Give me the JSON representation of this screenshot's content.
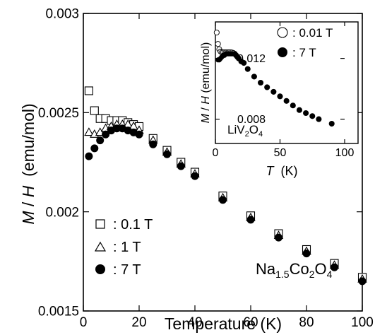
{
  "chart_data": [
    {
      "type": "scatter",
      "xlabel": "Temperature (K)",
      "ylabel_parts": [
        "M",
        " / ",
        "H",
        "  (emu/mol)"
      ],
      "xlim": [
        0,
        100
      ],
      "ylim": [
        0.0015,
        0.003
      ],
      "x_ticks": [
        0,
        20,
        40,
        60,
        80,
        100
      ],
      "x_tick_labels": [
        "0",
        "20",
        "40",
        "60",
        "80",
        "100"
      ],
      "y_ticks": [
        0.0015,
        0.002,
        0.0025,
        0.003
      ],
      "y_tick_labels": [
        "0.0015",
        "0.002",
        "0.0025",
        "0.003"
      ],
      "annotation": {
        "parts": [
          "Na",
          "1.5",
          "Co",
          "2",
          "O",
          "4"
        ]
      },
      "legend": {
        "position": "bottom-left",
        "entries": [
          {
            "marker": "open-square",
            "label": ": 0.1 T"
          },
          {
            "marker": "open-triangle",
            "label": ": 1 T"
          },
          {
            "marker": "filled-circle",
            "label": ": 7 T"
          }
        ]
      },
      "series": [
        {
          "name": "0.1 T",
          "marker": "open-square",
          "x": [
            2,
            4,
            6,
            8,
            10,
            12,
            14,
            16,
            18,
            20,
            25,
            30,
            35,
            40,
            50,
            60,
            70,
            80,
            90,
            100
          ],
          "y": [
            0.00261,
            0.00251,
            0.00247,
            0.00247,
            0.00246,
            0.00246,
            0.00246,
            0.00245,
            0.00244,
            0.00243,
            0.00237,
            0.00231,
            0.00225,
            0.0022,
            0.00208,
            0.00198,
            0.00189,
            0.00181,
            0.00174,
            0.00167
          ]
        },
        {
          "name": "1 T",
          "marker": "open-triangle",
          "x": [
            2,
            4,
            6,
            8,
            10,
            12,
            14,
            16,
            18,
            20,
            25,
            30,
            35,
            40,
            50,
            60,
            70,
            80,
            90,
            100
          ],
          "y": [
            0.0024,
            0.00239,
            0.0024,
            0.00242,
            0.00243,
            0.00244,
            0.00244,
            0.00244,
            0.00243,
            0.00241,
            0.00236,
            0.0023,
            0.00224,
            0.00219,
            0.00207,
            0.00197,
            0.00188,
            0.0018,
            0.00173,
            0.00166
          ]
        },
        {
          "name": "7 T",
          "marker": "filled-circle",
          "x": [
            2,
            4,
            6,
            8,
            10,
            12,
            14,
            16,
            18,
            20,
            25,
            30,
            35,
            40,
            50,
            60,
            70,
            80,
            90,
            100
          ],
          "y": [
            0.00228,
            0.00232,
            0.00236,
            0.00239,
            0.00241,
            0.00242,
            0.00242,
            0.00241,
            0.0024,
            0.00239,
            0.00234,
            0.00229,
            0.00223,
            0.00218,
            0.00206,
            0.00196,
            0.00187,
            0.00179,
            0.00172,
            0.00165
          ]
        }
      ]
    },
    {
      "type": "scatter",
      "xlabel_parts": [
        "T",
        "  (K)"
      ],
      "ylabel_parts": [
        "M",
        " / ",
        "H",
        " (emu/mol)"
      ],
      "xlim": [
        0,
        100
      ],
      "ylim": [
        0.0064,
        0.0144
      ],
      "x_ticks": [
        0,
        50,
        100
      ],
      "x_tick_labels": [
        "0",
        "50",
        "100"
      ],
      "y_ticks": [
        0.008,
        0.012
      ],
      "y_tick_labels": [
        "0.008",
        "0.012"
      ],
      "annotation": {
        "parts": [
          "LiV",
          "2",
          "O",
          "4"
        ]
      },
      "legend": {
        "position": "top-right",
        "entries": [
          {
            "marker": "open-circle",
            "label": ": 0.01 T"
          },
          {
            "marker": "filled-circle",
            "label": ": 7 T"
          }
        ]
      },
      "series": [
        {
          "name": "0.01 T",
          "marker": "open-circle",
          "x": [
            1,
            2,
            3,
            4,
            5,
            6,
            7,
            8,
            9,
            10,
            11,
            12,
            13,
            14,
            15,
            16,
            17,
            18,
            20,
            22,
            25,
            30,
            35,
            40,
            45,
            50,
            55,
            60,
            65,
            70,
            75,
            80,
            90
          ],
          "y": [
            0.0137,
            0.01295,
            0.0126,
            0.01245,
            0.0124,
            0.0124,
            0.0124,
            0.0124,
            0.0124,
            0.0124,
            0.0124,
            0.0124,
            0.01238,
            0.01235,
            0.0123,
            0.0122,
            0.0121,
            0.012,
            0.0118,
            0.0117,
            0.0113,
            0.0108,
            0.0104,
            0.0101,
            0.0098,
            0.0095,
            0.0092,
            0.0089,
            0.0086,
            0.0084,
            0.0082,
            0.008,
            0.0077
          ]
        },
        {
          "name": "7 T",
          "marker": "filled-circle",
          "x": [
            2,
            3,
            4,
            5,
            6,
            7,
            8,
            9,
            10,
            11,
            12,
            13,
            14,
            15,
            16,
            17,
            18,
            20,
            22,
            25,
            30,
            35,
            40,
            45,
            50,
            55,
            60,
            65,
            70,
            75,
            80,
            90
          ],
          "y": [
            0.0119,
            0.0119,
            0.012,
            0.0121,
            0.0122,
            0.0122,
            0.0123,
            0.0123,
            0.0123,
            0.0123,
            0.0123,
            0.0123,
            0.0123,
            0.0123,
            0.0122,
            0.0121,
            0.012,
            0.0118,
            0.0117,
            0.0113,
            0.0108,
            0.0104,
            0.0101,
            0.0098,
            0.0095,
            0.0092,
            0.0089,
            0.0086,
            0.0084,
            0.0082,
            0.008,
            0.0077
          ]
        }
      ]
    }
  ]
}
